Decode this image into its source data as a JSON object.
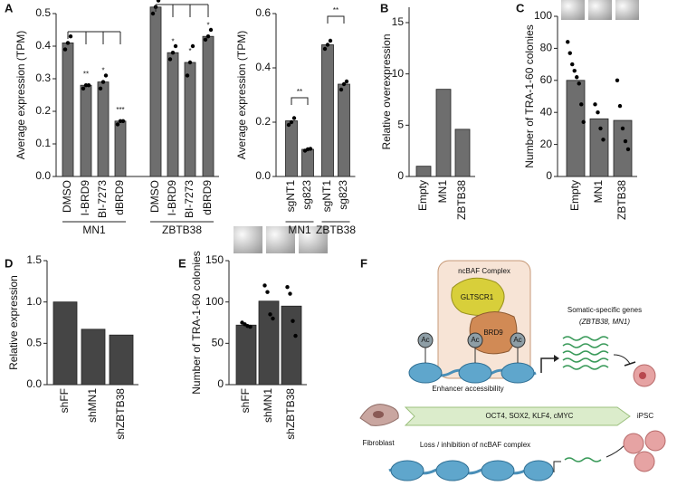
{
  "chart_data": [
    {
      "type": "bar",
      "panel": "A",
      "ylabel": "Average expression (TPM)",
      "color": "#6e6e6e",
      "categories": [
        "DMSO",
        "I-BRD9",
        "BI-7273",
        "dBRD9"
      ],
      "ylim": [
        0,
        0.5
      ],
      "yticks": [
        {
          "value": 0,
          "label": "0.0"
        },
        0.1,
        0.2,
        0.3,
        0.4,
        0.5
      ],
      "series": [
        {
          "name": "MN1",
          "values": [
            0.41,
            0.28,
            0.29,
            0.17
          ],
          "annotations": [
            null,
            "**",
            "*",
            "***"
          ],
          "points": [
            [
              0.39,
              0.41,
              0.43
            ],
            [
              0.27,
              0.28,
              0.28
            ],
            [
              0.27,
              0.29,
              0.31
            ],
            [
              0.16,
              0.17,
              0.17
            ]
          ]
        },
        {
          "name": "ZBTB38",
          "values": [
            0.52,
            0.38,
            0.35,
            0.43
          ],
          "annotations": [
            null,
            "*",
            "*",
            "*"
          ],
          "points": [
            [
              0.5,
              0.52,
              0.54
            ],
            [
              0.36,
              0.38,
              0.4
            ],
            [
              0.31,
              0.35,
              0.4
            ],
            [
              0.42,
              0.43,
              0.45
            ]
          ]
        }
      ]
    },
    {
      "type": "bar",
      "ylabel": "Average expression (TPM)",
      "color": "#6e6e6e",
      "categories": [
        "sgNT1",
        "sg823"
      ],
      "ylim": [
        0,
        0.6
      ],
      "yticks": [
        {
          "value": 0,
          "label": "0.0"
        },
        0.2,
        0.4,
        0.6
      ],
      "series": [
        {
          "name": "MN1",
          "values": [
            0.205,
            0.1
          ],
          "bracket_label": "**",
          "points": [
            [
              0.19,
              0.2,
              0.215
            ],
            [
              0.095,
              0.1,
              0.102
            ]
          ]
        },
        {
          "name": "ZBTB38",
          "values": [
            0.485,
            0.34
          ],
          "bracket_label": "**",
          "points": [
            [
              0.47,
              0.485,
              0.5
            ],
            [
              0.32,
              0.34,
              0.35
            ]
          ]
        }
      ]
    },
    {
      "type": "bar",
      "panel": "B",
      "ylabel": "Relative overexpression",
      "color": "#6e6e6e",
      "categories": [
        "Empty",
        "MN1",
        "ZBTB38"
      ],
      "ylim": [
        0,
        16.5
      ],
      "yticks": [
        0,
        5,
        10,
        15
      ],
      "series": [
        {
          "values": [
            1,
            8.5,
            4.6
          ]
        }
      ]
    },
    {
      "type": "bar",
      "panel": "C",
      "ylabel": "Number of TRA-1-60 colonies",
      "color": "#6e6e6e",
      "categories": [
        "Empty",
        "MN1",
        "ZBTB38"
      ],
      "ylim": [
        0,
        100
      ],
      "yticks": [
        0,
        20,
        40,
        60,
        80,
        100
      ],
      "series": [
        {
          "values": [
            60,
            36,
            35
          ],
          "points": [
            [
              84,
              77,
              70,
              66,
              62,
              58,
              45,
              34
            ],
            [
              45,
              40,
              30,
              23
            ],
            [
              60,
              44,
              30,
              22,
              17
            ]
          ]
        }
      ]
    },
    {
      "type": "bar",
      "panel": "D",
      "ylabel": "Relative expression",
      "color": "#454545",
      "categories": [
        "shFF",
        "shMN1",
        "shZBTB38"
      ],
      "ylim": [
        0,
        1.5
      ],
      "yticks": [
        {
          "value": 0,
          "label": "0.0"
        },
        0.5,
        {
          "value": 1,
          "label": "1.0"
        },
        1.5
      ],
      "series": [
        {
          "values": [
            1,
            0.67,
            0.6
          ]
        }
      ]
    },
    {
      "type": "bar",
      "panel": "E",
      "ylabel": "Number of TRA-1-60 colonies",
      "color": "#454545",
      "categories": [
        "shFF",
        "shMN1",
        "shZBTB38"
      ],
      "ylim": [
        0,
        150
      ],
      "yticks": [
        0,
        50,
        100,
        150
      ],
      "series": [
        {
          "values": [
            72,
            101,
            95
          ],
          "points": [
            [
              75,
              73,
              71,
              70
            ],
            [
              120,
              112,
              85,
              80
            ],
            [
              118,
              110,
              77,
              59
            ]
          ]
        }
      ]
    }
  ],
  "diagram": {
    "panel": "F",
    "complex": "ncBAF Complex",
    "subunits": [
      "GLTSCR1",
      "BRD9"
    ],
    "marks": [
      "Ac",
      "Ac",
      "Ac"
    ],
    "genes_title": "Somatic-specific genes",
    "genes": "(ZBTB38, MN1)",
    "enhancer": "Enhancer accessibility",
    "start_cell": "Fibroblast",
    "factors": "OCT4, SOX2, KLF4, cMYC",
    "end_cell": "iPSC",
    "loss": "Loss / inhibition of ncBAF complex"
  }
}
